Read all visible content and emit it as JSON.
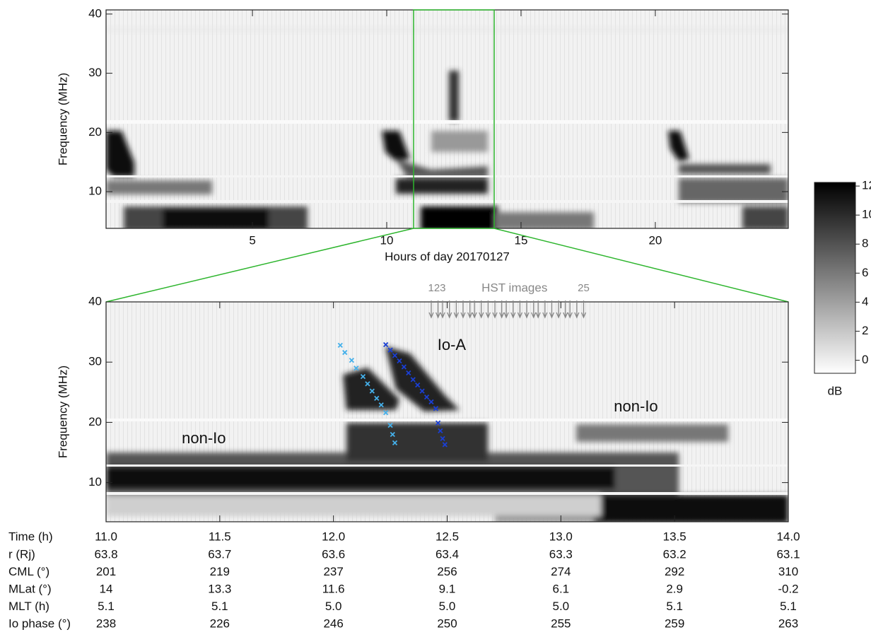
{
  "chart_data": [
    {
      "type": "spectrogram",
      "ylabel": "Frequency (MHz)",
      "xlabel": "Hours of day 20170127",
      "xlim": [
        -0.45,
        24.95
      ],
      "ylim": [
        3.8,
        40.7
      ],
      "xticks": [
        5,
        10,
        15,
        20
      ],
      "yticks": [
        10,
        20,
        30,
        40
      ],
      "zoom": {
        "x": [
          11,
          14
        ],
        "color": "#2db52d"
      }
    },
    {
      "type": "spectrogram",
      "ylabel": "Frequency (MHz)",
      "xlabel": "Time (h)",
      "xlim": [
        11,
        14
      ],
      "ylim": [
        3.5,
        40
      ],
      "xticks": [
        {
          "value": 11,
          "label": "11.0"
        },
        {
          "value": 11.5,
          "label": "11.5"
        },
        {
          "value": 12,
          "label": "12.0"
        },
        {
          "value": 12.5,
          "label": "12.5"
        },
        {
          "value": 13,
          "label": "13.0"
        },
        {
          "value": 13.5,
          "label": "13.5"
        },
        {
          "value": 14,
          "label": "14.0"
        }
      ],
      "yticks": [
        10,
        20,
        30,
        40
      ],
      "series": [
        {
          "color": "#45b0ea",
          "x": [
            12.03,
            12.05,
            12.08,
            12.1,
            12.13,
            12.15,
            12.17,
            12.19,
            12.21,
            12.23,
            12.25,
            12.26,
            12.27
          ],
          "values": [
            32.8,
            31.6,
            30.3,
            29.0,
            27.6,
            26.4,
            25.2,
            24.0,
            22.9,
            21.6,
            19.5,
            18.0,
            16.6
          ]
        },
        {
          "color": "#1a3fd4",
          "x": [
            12.23,
            12.25,
            12.27,
            12.29,
            12.31,
            12.33,
            12.35,
            12.37,
            12.39,
            12.41,
            12.43,
            12.45,
            12.46,
            12.47,
            12.48,
            12.49
          ],
          "values": [
            32.9,
            32.0,
            31.1,
            30.2,
            29.2,
            28.2,
            27.1,
            26.2,
            25.2,
            24.2,
            23.4,
            22.3,
            19.9,
            18.6,
            17.3,
            16.3
          ]
        }
      ],
      "annotations": [
        {
          "text": "Io-A",
          "x": 12.52,
          "y": 32.7
        },
        {
          "text": "non-Io",
          "x": 11.43,
          "y": 17.2
        },
        {
          "text": "non-Io",
          "x": 13.33,
          "y": 22.5
        }
      ],
      "hst": {
        "title": "HST images",
        "first_label": "123",
        "last_label": "25",
        "color": "#888888",
        "x": [
          12.43,
          12.46,
          12.48,
          12.51,
          12.54,
          12.57,
          12.6,
          12.62,
          12.65,
          12.68,
          12.71,
          12.74,
          12.76,
          12.79,
          12.82,
          12.85,
          12.88,
          12.9,
          12.93,
          12.96,
          12.99,
          13.02,
          13.04,
          13.07,
          13.1
        ]
      }
    },
    {
      "type": "colorbar",
      "label": "dB",
      "ylim": [
        -0.9,
        12.25
      ],
      "yticks": [
        0,
        2,
        4,
        6,
        8,
        10,
        12
      ]
    }
  ],
  "table": {
    "rows": [
      [
        "r (Rj)",
        "63.8",
        "63.7",
        "63.6",
        "63.4",
        "63.3",
        "63.2",
        "63.1"
      ],
      [
        "CML (°)",
        "201",
        "219",
        "237",
        "256",
        "274",
        "292",
        "310"
      ],
      [
        "MLat (°)",
        "14",
        "13.3",
        "11.6",
        "9.1",
        "6.1",
        "2.9",
        "-0.2"
      ],
      [
        "MLT (h)",
        "5.1",
        "5.1",
        "5.0",
        "5.0",
        "5.0",
        "5.1",
        "5.1"
      ],
      [
        "Io phase (°)",
        "238",
        "226",
        "246",
        "250",
        "255",
        "259",
        "263"
      ]
    ]
  }
}
